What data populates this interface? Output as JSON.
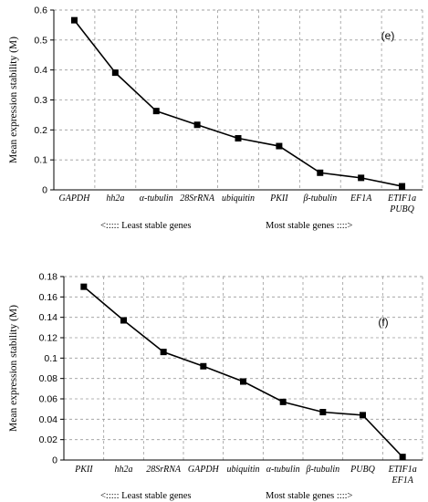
{
  "chart_data": [
    {
      "type": "line",
      "panel_label": "(e)",
      "ylabel": "Mean expression stability (M)",
      "ylim": [
        0,
        0.6
      ],
      "ytick_step": 0.1,
      "ytick_labels": [
        "0",
        "0.1",
        "0.2",
        "0.3",
        "0.4",
        "0.5",
        "0.6"
      ],
      "categories": [
        [
          "GAPDH"
        ],
        [
          "hh2a"
        ],
        [
          "α-tubulin"
        ],
        [
          "28SrRNA"
        ],
        [
          "ubiquitin"
        ],
        [
          "PKII"
        ],
        [
          "β-tubulin"
        ],
        [
          "EF1A"
        ],
        [
          "ETIF1a",
          "PUBQ"
        ]
      ],
      "values": [
        0.566,
        0.391,
        0.263,
        0.217,
        0.172,
        0.146,
        0.057,
        0.04,
        0.012
      ],
      "footer_left": "<:::::   Least stable genes",
      "footer_right": "Most stable genes ::::>",
      "grid": true
    },
    {
      "type": "line",
      "panel_label": "(f)",
      "ylabel": "Mean expression stability (M)",
      "ylim": [
        0,
        0.18
      ],
      "ytick_step": 0.02,
      "ytick_labels": [
        "0",
        "0.02",
        "0.04",
        "0.06",
        "0.08",
        "0.1",
        "0.12",
        "0.14",
        "0.16",
        "0.18"
      ],
      "categories": [
        [
          "PKII"
        ],
        [
          "hh2a"
        ],
        [
          "28SrRNA"
        ],
        [
          "GAPDH"
        ],
        [
          "ubiquitin"
        ],
        [
          "α-tubulin"
        ],
        [
          "β-tubulin"
        ],
        [
          "PUBQ"
        ],
        [
          "ETIF1a",
          "EF1A"
        ]
      ],
      "values": [
        0.17,
        0.137,
        0.106,
        0.092,
        0.077,
        0.057,
        0.047,
        0.044,
        0.003
      ],
      "footer_left": "<:::::   Least stable genes",
      "footer_right": "Most stable genes ::::>",
      "grid": true
    }
  ]
}
